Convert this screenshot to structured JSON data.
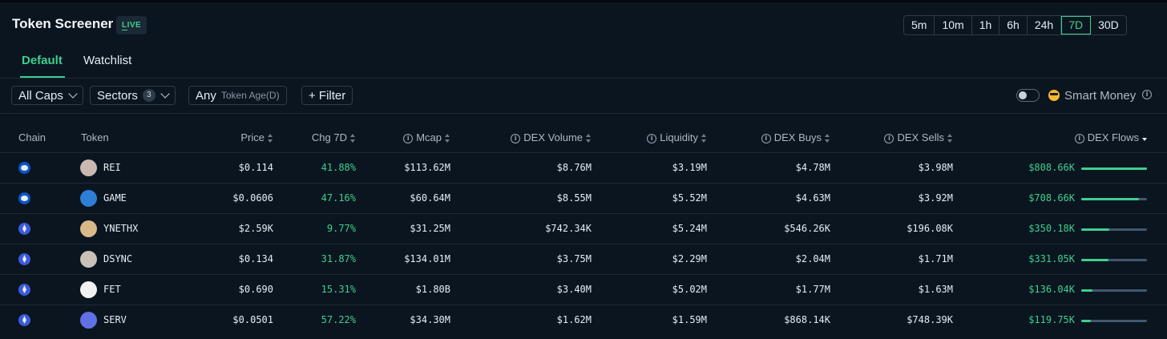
{
  "header": {
    "title": "Token Screener",
    "live_badge": "LIVE"
  },
  "timeframes": [
    {
      "label": "5m",
      "active": false
    },
    {
      "label": "10m",
      "active": false
    },
    {
      "label": "1h",
      "active": false
    },
    {
      "label": "6h",
      "active": false
    },
    {
      "label": "24h",
      "active": false
    },
    {
      "label": "7D",
      "active": true
    },
    {
      "label": "30D",
      "active": false
    }
  ],
  "tabs": [
    {
      "label": "Default",
      "active": true
    },
    {
      "label": "Watchlist",
      "active": false
    }
  ],
  "filters": {
    "caps": "All Caps",
    "sectors": "Sectors",
    "sectors_count": "3",
    "age_value": "Any",
    "age_label": "Token Age(D)",
    "add_filter": "+ Filter",
    "smart_money": "Smart Money"
  },
  "columns": {
    "chain": "Chain",
    "token": "Token",
    "price": "Price",
    "chg": "Chg 7D",
    "mcap": "Mcap",
    "dex_volume": "DEX Volume",
    "liquidity": "Liquidity",
    "dex_buys": "DEX Buys",
    "dex_sells": "DEX Sells",
    "dex_flows": "DEX Flows"
  },
  "colors": {
    "accent": "#3ecf8e",
    "background": "#0b1520",
    "bar_track": "#41586d"
  },
  "rows": [
    {
      "chain_icon": "base-chain-icon",
      "token": "REI",
      "price": "$0.114",
      "chg": "41.88%",
      "mcap": "$113.62M",
      "dex_volume": "$8.76M",
      "liquidity": "$3.19M",
      "dex_buys": "$4.78M",
      "dex_sells": "$3.98M",
      "dex_flows": "$808.66K",
      "flow_fraction": 1.0
    },
    {
      "chain_icon": "base-chain-icon",
      "token": "GAME",
      "price": "$0.0606",
      "chg": "47.16%",
      "mcap": "$60.64M",
      "dex_volume": "$8.55M",
      "liquidity": "$5.52M",
      "dex_buys": "$4.63M",
      "dex_sells": "$3.92M",
      "dex_flows": "$708.66K",
      "flow_fraction": 0.88
    },
    {
      "chain_icon": "ethereum-icon",
      "token": "YNETHX",
      "price": "$2.59K",
      "chg": "9.77%",
      "mcap": "$31.25M",
      "dex_volume": "$742.34K",
      "liquidity": "$5.24M",
      "dex_buys": "$546.26K",
      "dex_sells": "$196.08K",
      "dex_flows": "$350.18K",
      "flow_fraction": 0.43
    },
    {
      "chain_icon": "ethereum-icon",
      "token": "DSYNC",
      "price": "$0.134",
      "chg": "31.87%",
      "mcap": "$134.01M",
      "dex_volume": "$3.75M",
      "liquidity": "$2.29M",
      "dex_buys": "$2.04M",
      "dex_sells": "$1.71M",
      "dex_flows": "$331.05K",
      "flow_fraction": 0.41
    },
    {
      "chain_icon": "ethereum-icon",
      "token": "FET",
      "price": "$0.690",
      "chg": "15.31%",
      "mcap": "$1.80B",
      "dex_volume": "$3.40M",
      "liquidity": "$5.02M",
      "dex_buys": "$1.77M",
      "dex_sells": "$1.63M",
      "dex_flows": "$136.04K",
      "flow_fraction": 0.17
    },
    {
      "chain_icon": "ethereum-icon",
      "token": "SERV",
      "price": "$0.0501",
      "chg": "57.22%",
      "mcap": "$34.30M",
      "dex_volume": "$1.62M",
      "liquidity": "$1.59M",
      "dex_buys": "$868.14K",
      "dex_sells": "$748.39K",
      "dex_flows": "$119.75K",
      "flow_fraction": 0.15
    }
  ]
}
